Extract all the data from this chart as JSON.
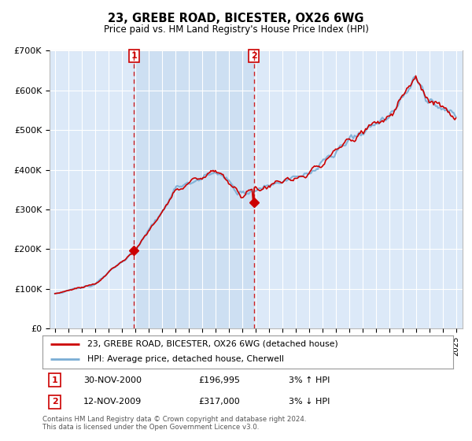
{
  "title": "23, GREBE ROAD, BICESTER, OX26 6WG",
  "subtitle": "Price paid vs. HM Land Registry's House Price Index (HPI)",
  "legend_line1": "23, GREBE ROAD, BICESTER, OX26 6WG (detached house)",
  "legend_line2": "HPI: Average price, detached house, Cherwell",
  "annotation1_label": "1",
  "annotation1_date": "30-NOV-2000",
  "annotation1_price": "£196,995",
  "annotation1_hpi": "3% ↑ HPI",
  "annotation2_label": "2",
  "annotation2_date": "12-NOV-2009",
  "annotation2_price": "£317,000",
  "annotation2_hpi": "3% ↓ HPI",
  "footer": "Contains HM Land Registry data © Crown copyright and database right 2024.\nThis data is licensed under the Open Government Licence v3.0.",
  "ylim": [
    0,
    700000
  ],
  "yticks": [
    0,
    100000,
    200000,
    300000,
    400000,
    500000,
    600000,
    700000
  ],
  "ytick_labels": [
    "£0",
    "£100K",
    "£200K",
    "£300K",
    "£400K",
    "£500K",
    "£600K",
    "£700K"
  ],
  "background_color": "#dce9f8",
  "red_line_color": "#cc0000",
  "blue_line_color": "#7aadd4",
  "vline_color": "#cc0000",
  "grid_color": "#ffffff",
  "shade_color": "#c8dcf0",
  "t1_x": 2000.917,
  "t2_x": 2009.875,
  "t1_y": 196995,
  "t2_y": 317000,
  "xmin": 1995,
  "xmax": 2025
}
